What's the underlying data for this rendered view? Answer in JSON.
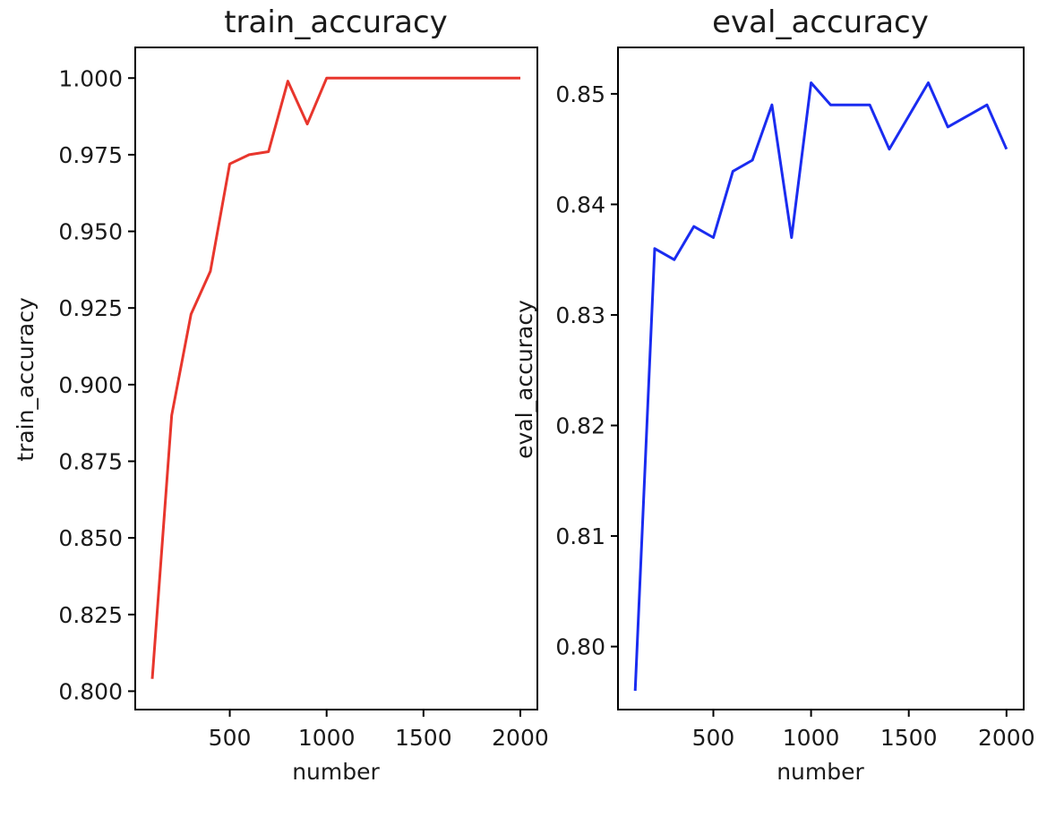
{
  "chart_data": [
    {
      "type": "line",
      "title": "train_accuracy",
      "xlabel": "number",
      "ylabel": "train_accuracy",
      "xlim": [
        12,
        2088
      ],
      "ylim": [
        0.794,
        1.01
      ],
      "xticks": [
        500,
        1000,
        1500,
        2000
      ],
      "xtick_labels": [
        "500",
        "1000",
        "1500",
        "2000"
      ],
      "yticks": [
        0.8,
        0.825,
        0.85,
        0.875,
        0.9,
        0.925,
        0.95,
        0.975,
        1.0
      ],
      "ytick_labels": [
        "0.800",
        "0.825",
        "0.850",
        "0.875",
        "0.900",
        "0.925",
        "0.950",
        "0.975",
        "1.000"
      ],
      "grid": false,
      "color": "#e8362d",
      "series": [
        {
          "x": [
            100,
            200,
            300,
            400,
            500,
            600,
            700,
            800,
            900,
            1000,
            1100,
            1200,
            1300,
            1400,
            1500,
            1600,
            1700,
            1800,
            1900,
            2000
          ],
          "y": [
            0.804,
            0.89,
            0.923,
            0.937,
            0.972,
            0.975,
            0.976,
            0.999,
            0.985,
            1.0,
            1.0,
            1.0,
            1.0,
            1.0,
            1.0,
            1.0,
            1.0,
            1.0,
            1.0,
            1.0
          ]
        }
      ]
    },
    {
      "type": "line",
      "title": "eval_accuracy",
      "xlabel": "number",
      "ylabel": "eval_accuracy",
      "xlim": [
        12,
        2088
      ],
      "ylim": [
        0.7943,
        0.8542
      ],
      "xticks": [
        500,
        1000,
        1500,
        2000
      ],
      "xtick_labels": [
        "500",
        "1000",
        "1500",
        "2000"
      ],
      "yticks": [
        0.8,
        0.81,
        0.82,
        0.83,
        0.84,
        0.85
      ],
      "ytick_labels": [
        "0.80",
        "0.81",
        "0.82",
        "0.83",
        "0.84",
        "0.85"
      ],
      "grid": false,
      "color": "#1a2cf0",
      "series": [
        {
          "x": [
            100,
            200,
            300,
            400,
            500,
            600,
            700,
            800,
            900,
            1000,
            1100,
            1200,
            1300,
            1400,
            1500,
            1600,
            1700,
            1800,
            1900,
            2000
          ],
          "y": [
            0.796,
            0.836,
            0.835,
            0.838,
            0.837,
            0.843,
            0.844,
            0.849,
            0.837,
            0.851,
            0.849,
            0.849,
            0.849,
            0.845,
            0.848,
            0.851,
            0.847,
            0.848,
            0.849,
            0.845
          ]
        }
      ]
    }
  ]
}
